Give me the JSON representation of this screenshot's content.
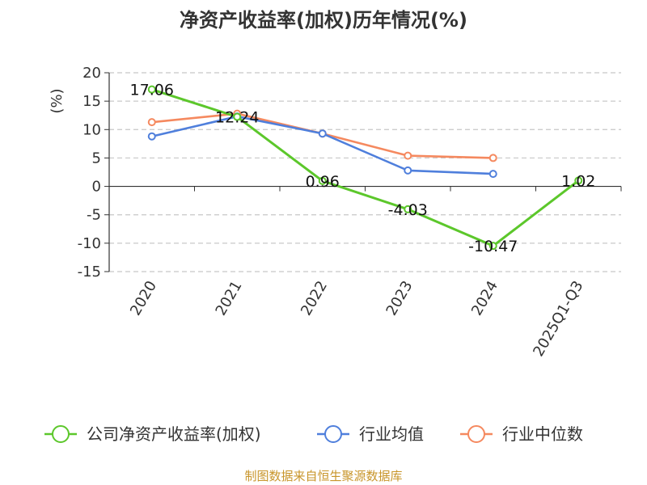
{
  "chart_data": {
    "type": "line",
    "title": "净资产收益率(加权)历年情况(%)",
    "ylabel": "(%)",
    "categories": [
      "2020",
      "2021",
      "2022",
      "2023",
      "2024",
      "2025Q1-Q3"
    ],
    "ylim": [
      -15,
      20
    ],
    "yticks": [
      20,
      15,
      10,
      5,
      0,
      -5,
      -10,
      -15
    ],
    "grid": true,
    "legend_position": "bottom",
    "series": [
      {
        "name": "公司净资产收益率(加权)",
        "values": [
          17.06,
          12.24,
          0.96,
          -4.03,
          -10.47,
          1.02
        ],
        "labels": [
          "17.06",
          "12.24",
          "0.96",
          "-4.03",
          "-10.47",
          "1.02"
        ],
        "color": "#5cc72b"
      },
      {
        "name": "行业均值",
        "values": [
          8.8,
          12.3,
          9.3,
          2.8,
          2.2,
          null
        ],
        "color": "#4f7fdc"
      },
      {
        "name": "行业中位数",
        "values": [
          11.3,
          12.8,
          9.3,
          5.4,
          5.0,
          null
        ],
        "color": "#f5895f"
      }
    ]
  },
  "source_text": "制图数据来自恒生聚源数据库",
  "colors": {
    "axis": "#333333",
    "grid": "#c8c8c8",
    "ylabel": "#d32f2f",
    "source": "#c8952a"
  }
}
